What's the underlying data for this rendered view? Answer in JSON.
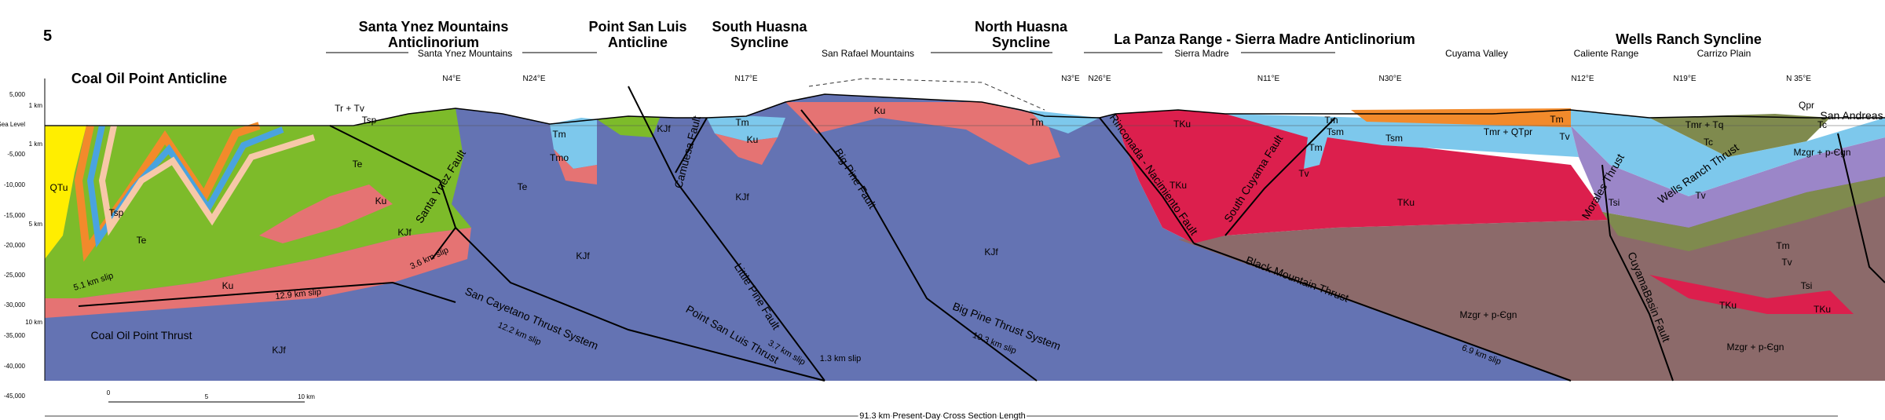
{
  "figure_number": "5",
  "headers": [
    {
      "lines": [
        "Coal Oil Point Anticline"
      ]
    },
    {
      "lines": [
        "Santa Ynez Mountains",
        "Anticlinorium"
      ]
    },
    {
      "lines": [
        "Point San Luis",
        "Anticline"
      ]
    },
    {
      "lines": [
        "South Huasna",
        "Syncline"
      ]
    },
    {
      "lines": [
        "North Huasna",
        "Syncline"
      ]
    },
    {
      "lines": [
        "La Panza Range - Sierra Madre Anticlinorium"
      ]
    },
    {
      "lines": [
        "Wells Ranch Syncline"
      ]
    }
  ],
  "ranges": [
    "Santa Ynez Mountains",
    "San Rafael Mountains",
    "Sierra Madre",
    "Cuyama Valley",
    "Caliente Range",
    "Carrizo Plain"
  ],
  "orientations": [
    "N4°E",
    "N24°E",
    "N17°E",
    "N3°E",
    "N26°E",
    "N11°E",
    "N30°E",
    "N12°E",
    "N19°E",
    "N 35°E"
  ],
  "depth_axis": [
    "5,000",
    "Sea Level",
    "-5,000",
    "-10,000",
    "-15,000",
    "-20,000",
    "-25,000",
    "-30,000",
    "-35,000",
    "-40,000",
    "-45,000"
  ],
  "depth_km": [
    "1 km",
    "1 km",
    "5 km",
    "10 km"
  ],
  "units": [
    "QTu",
    "Tsp",
    "Te",
    "Ku",
    "KJf",
    "Te",
    "Ku",
    "KJf",
    "Tm",
    "Tmo",
    "Te",
    "KJf",
    "Tm",
    "Ku",
    "KJf",
    "Ku",
    "KJf",
    "Tm",
    "TKu",
    "TKu",
    "Tm",
    "Tsm",
    "Tm",
    "Tsm",
    "Tmr + QTpr",
    "TKu",
    "Mzgr + p-Єgn",
    "Tm",
    "Tv",
    "Tmr + Tq",
    "Tc",
    "Tc",
    "Qpr",
    "Mzgr + p-Єgn",
    "Tsi",
    "Tv",
    "Tm",
    "Tv",
    "Tsi",
    "TKu",
    "TKu",
    "Mzgr + p-Єgn",
    "Tr + Tv",
    "Tsp",
    "KJf",
    "Tv"
  ],
  "faults": [
    "Santa Ynez Fault",
    "Camuesa Fault",
    "Little Pine Fault",
    "Big Pine Fault",
    "Rinconada - Nacimiento Fault",
    "South Cuyama Fault",
    "Morales Thrust",
    "Wells Ranch Thrust",
    "CuyamaBasin Fault",
    "Black Mountain Thrust",
    "San Andreas Fault",
    "Coal Oil Point Thrust",
    "San Cayetano Thrust System",
    "Point San Luis Thrust",
    "Big Pine Thrust System"
  ],
  "slips": [
    "5.1 km slip",
    "12.9 km slip",
    "3.6 km slip",
    "12.2 km slip",
    "3.7 km slip",
    "1.3 km slip",
    "10.3 km slip",
    "6.9 km slip"
  ],
  "scale_bar": [
    "0",
    "5",
    "10 km"
  ],
  "section_length": "91.3 km Present-Day Cross Section Length"
}
